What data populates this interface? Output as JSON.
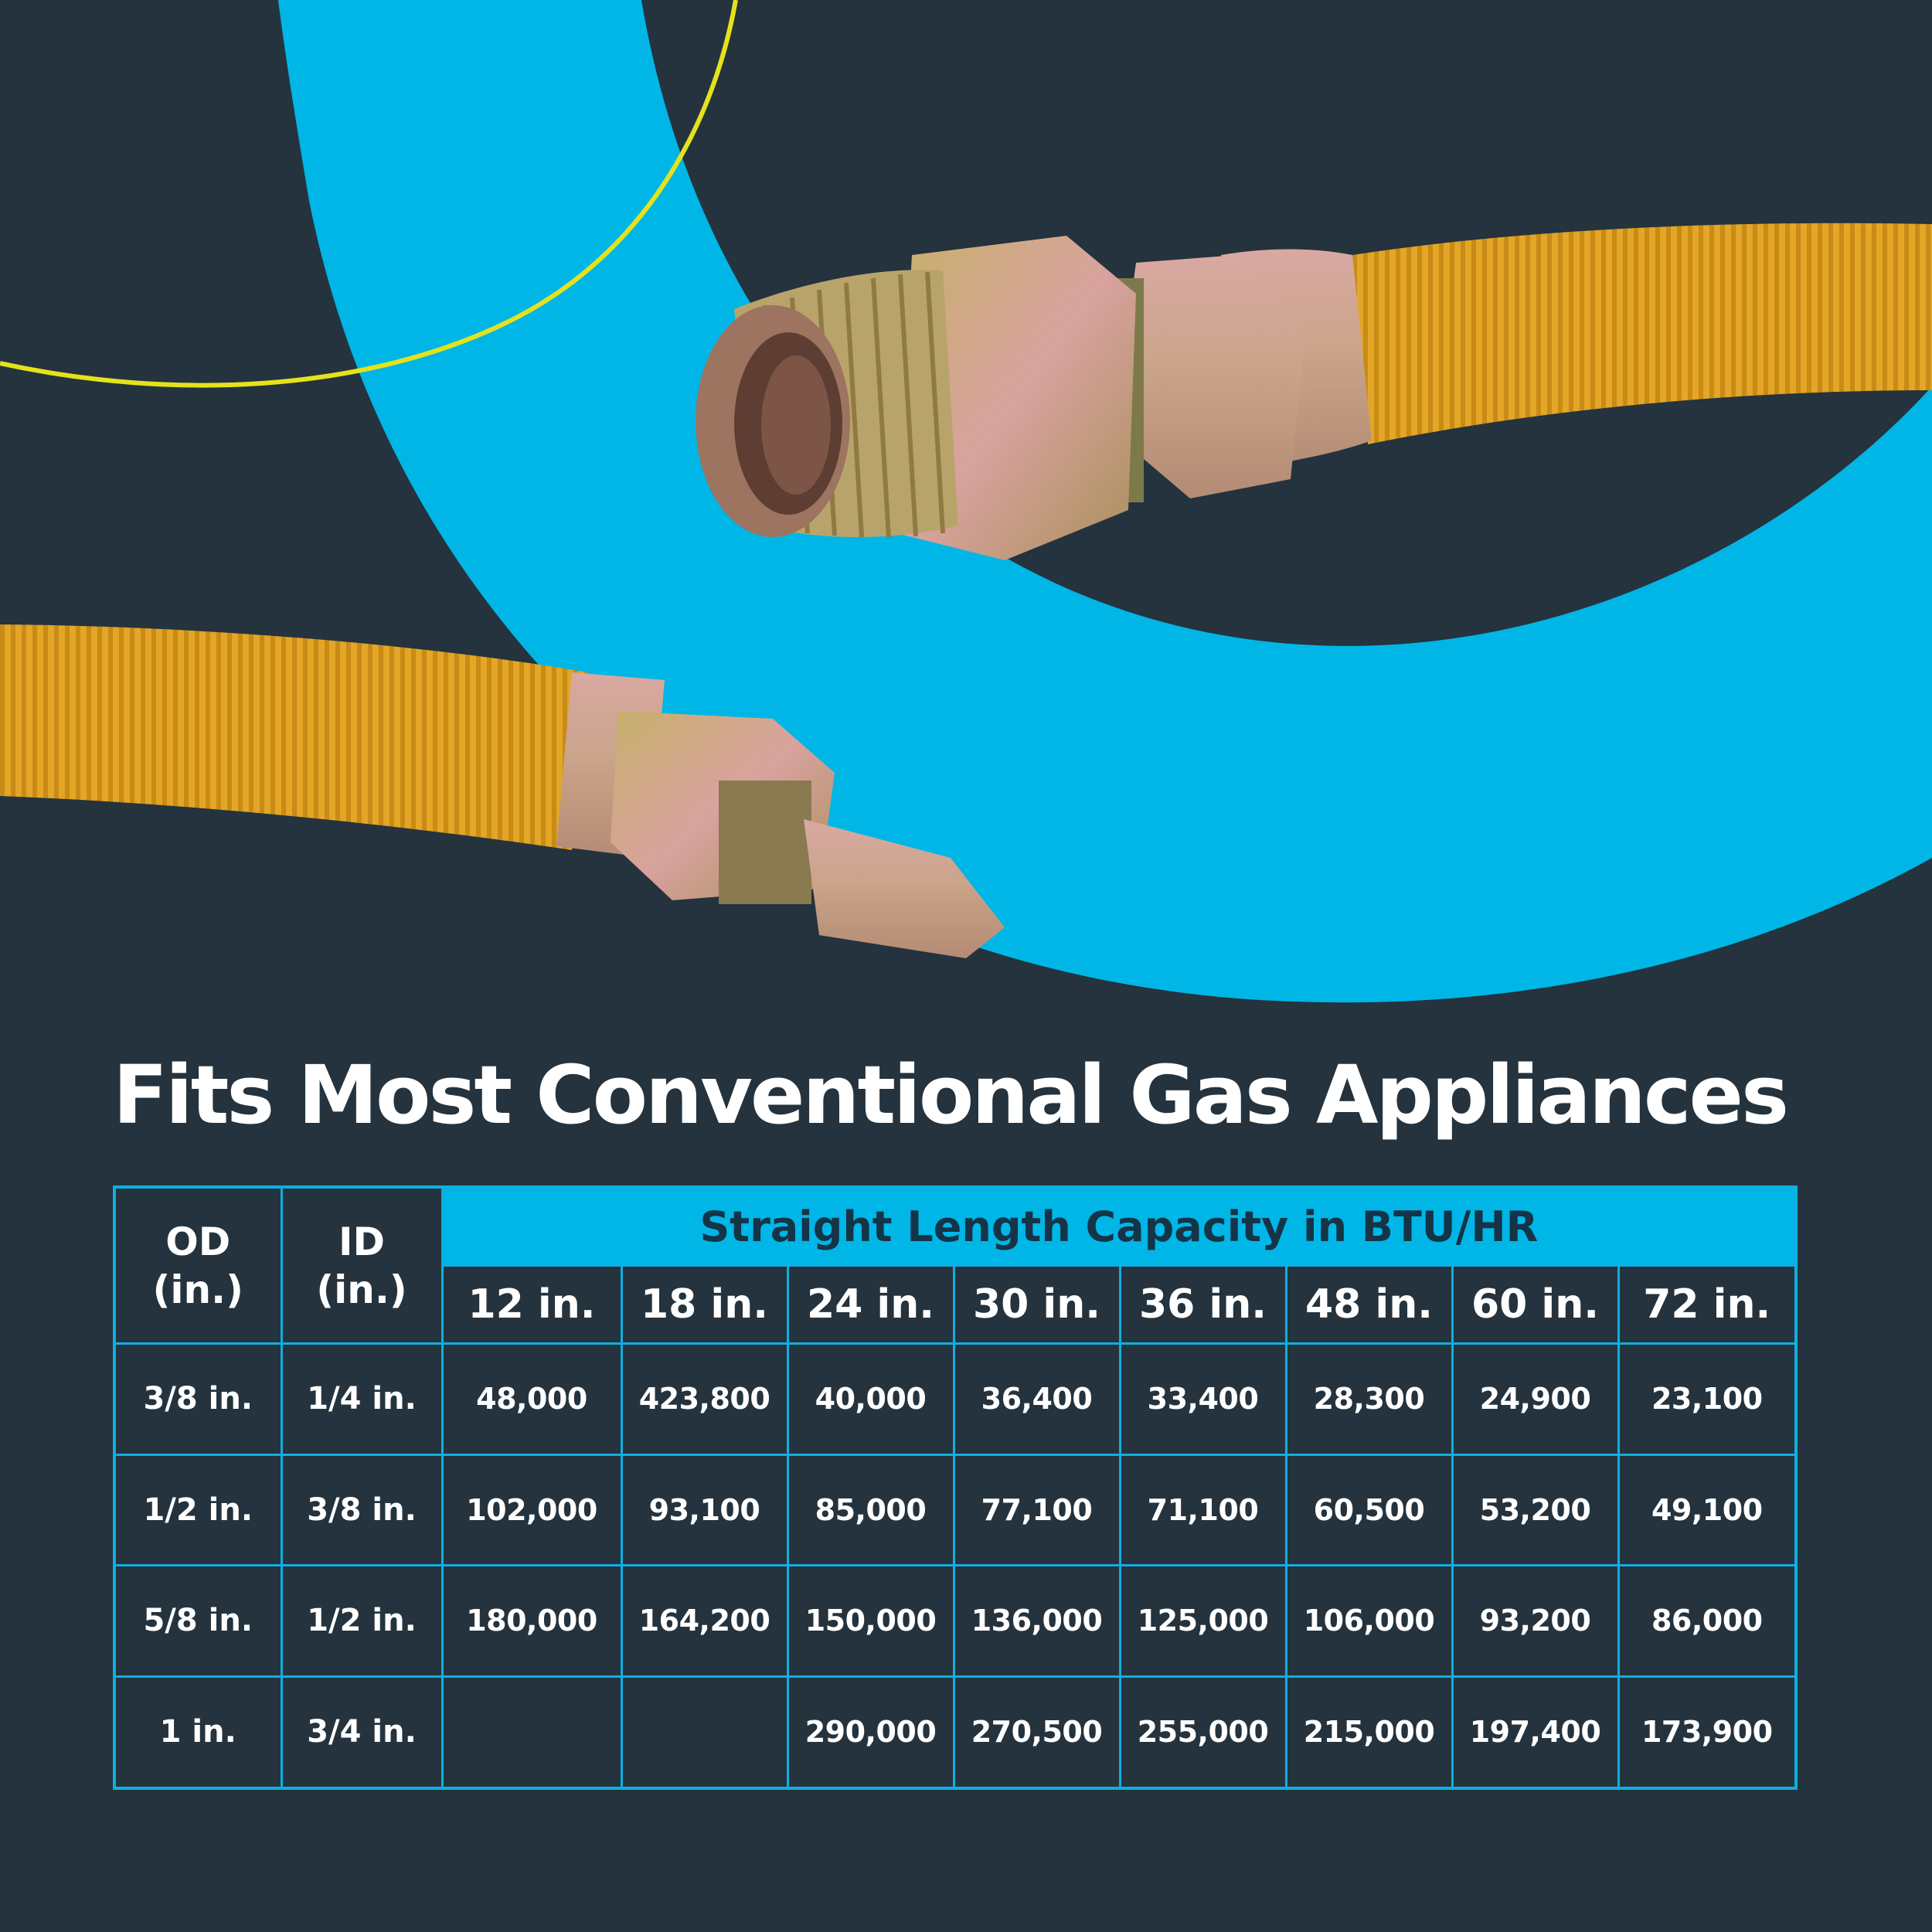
{
  "headline": "Fits Most Conventional Gas Appliances",
  "colors": {
    "background": "#24333d",
    "accent_blue": "#00b6e6",
    "hose_yellow": "#e3a626",
    "accent_yellow_line": "#e4e21d",
    "header_text": "#143447"
  },
  "illustration": {
    "subject": "yellow coated flexible gas connector hoses with brass fittings"
  },
  "table": {
    "od_header": "OD\n(in.)",
    "id_header": "ID\n(in.)",
    "capacity_header": "Straight Length Capacity in BTU/HR",
    "lengths": [
      "12 in.",
      "18 in.",
      "24 in.",
      "30 in.",
      "36 in.",
      "48 in.",
      "60 in.",
      "72 in."
    ],
    "rows": [
      {
        "od": "3/8 in.",
        "id": "1/4 in.",
        "values": [
          "48,000",
          "423,800",
          "40,000",
          "36,400",
          "33,400",
          "28,300",
          "24,900",
          "23,100"
        ]
      },
      {
        "od": "1/2 in.",
        "id": "3/8 in.",
        "values": [
          "102,000",
          "93,100",
          "85,000",
          "77,100",
          "71,100",
          "60,500",
          "53,200",
          "49,100"
        ]
      },
      {
        "od": "5/8 in.",
        "id": "1/2 in.",
        "values": [
          "180,000",
          "164,200",
          "150,000",
          "136,000",
          "125,000",
          "106,000",
          "93,200",
          "86,000"
        ]
      },
      {
        "od": "1 in.",
        "id": "3/4 in.",
        "values": [
          "",
          "",
          "290,000",
          "270,500",
          "255,000",
          "215,000",
          "197,400",
          "173,900"
        ]
      }
    ]
  }
}
